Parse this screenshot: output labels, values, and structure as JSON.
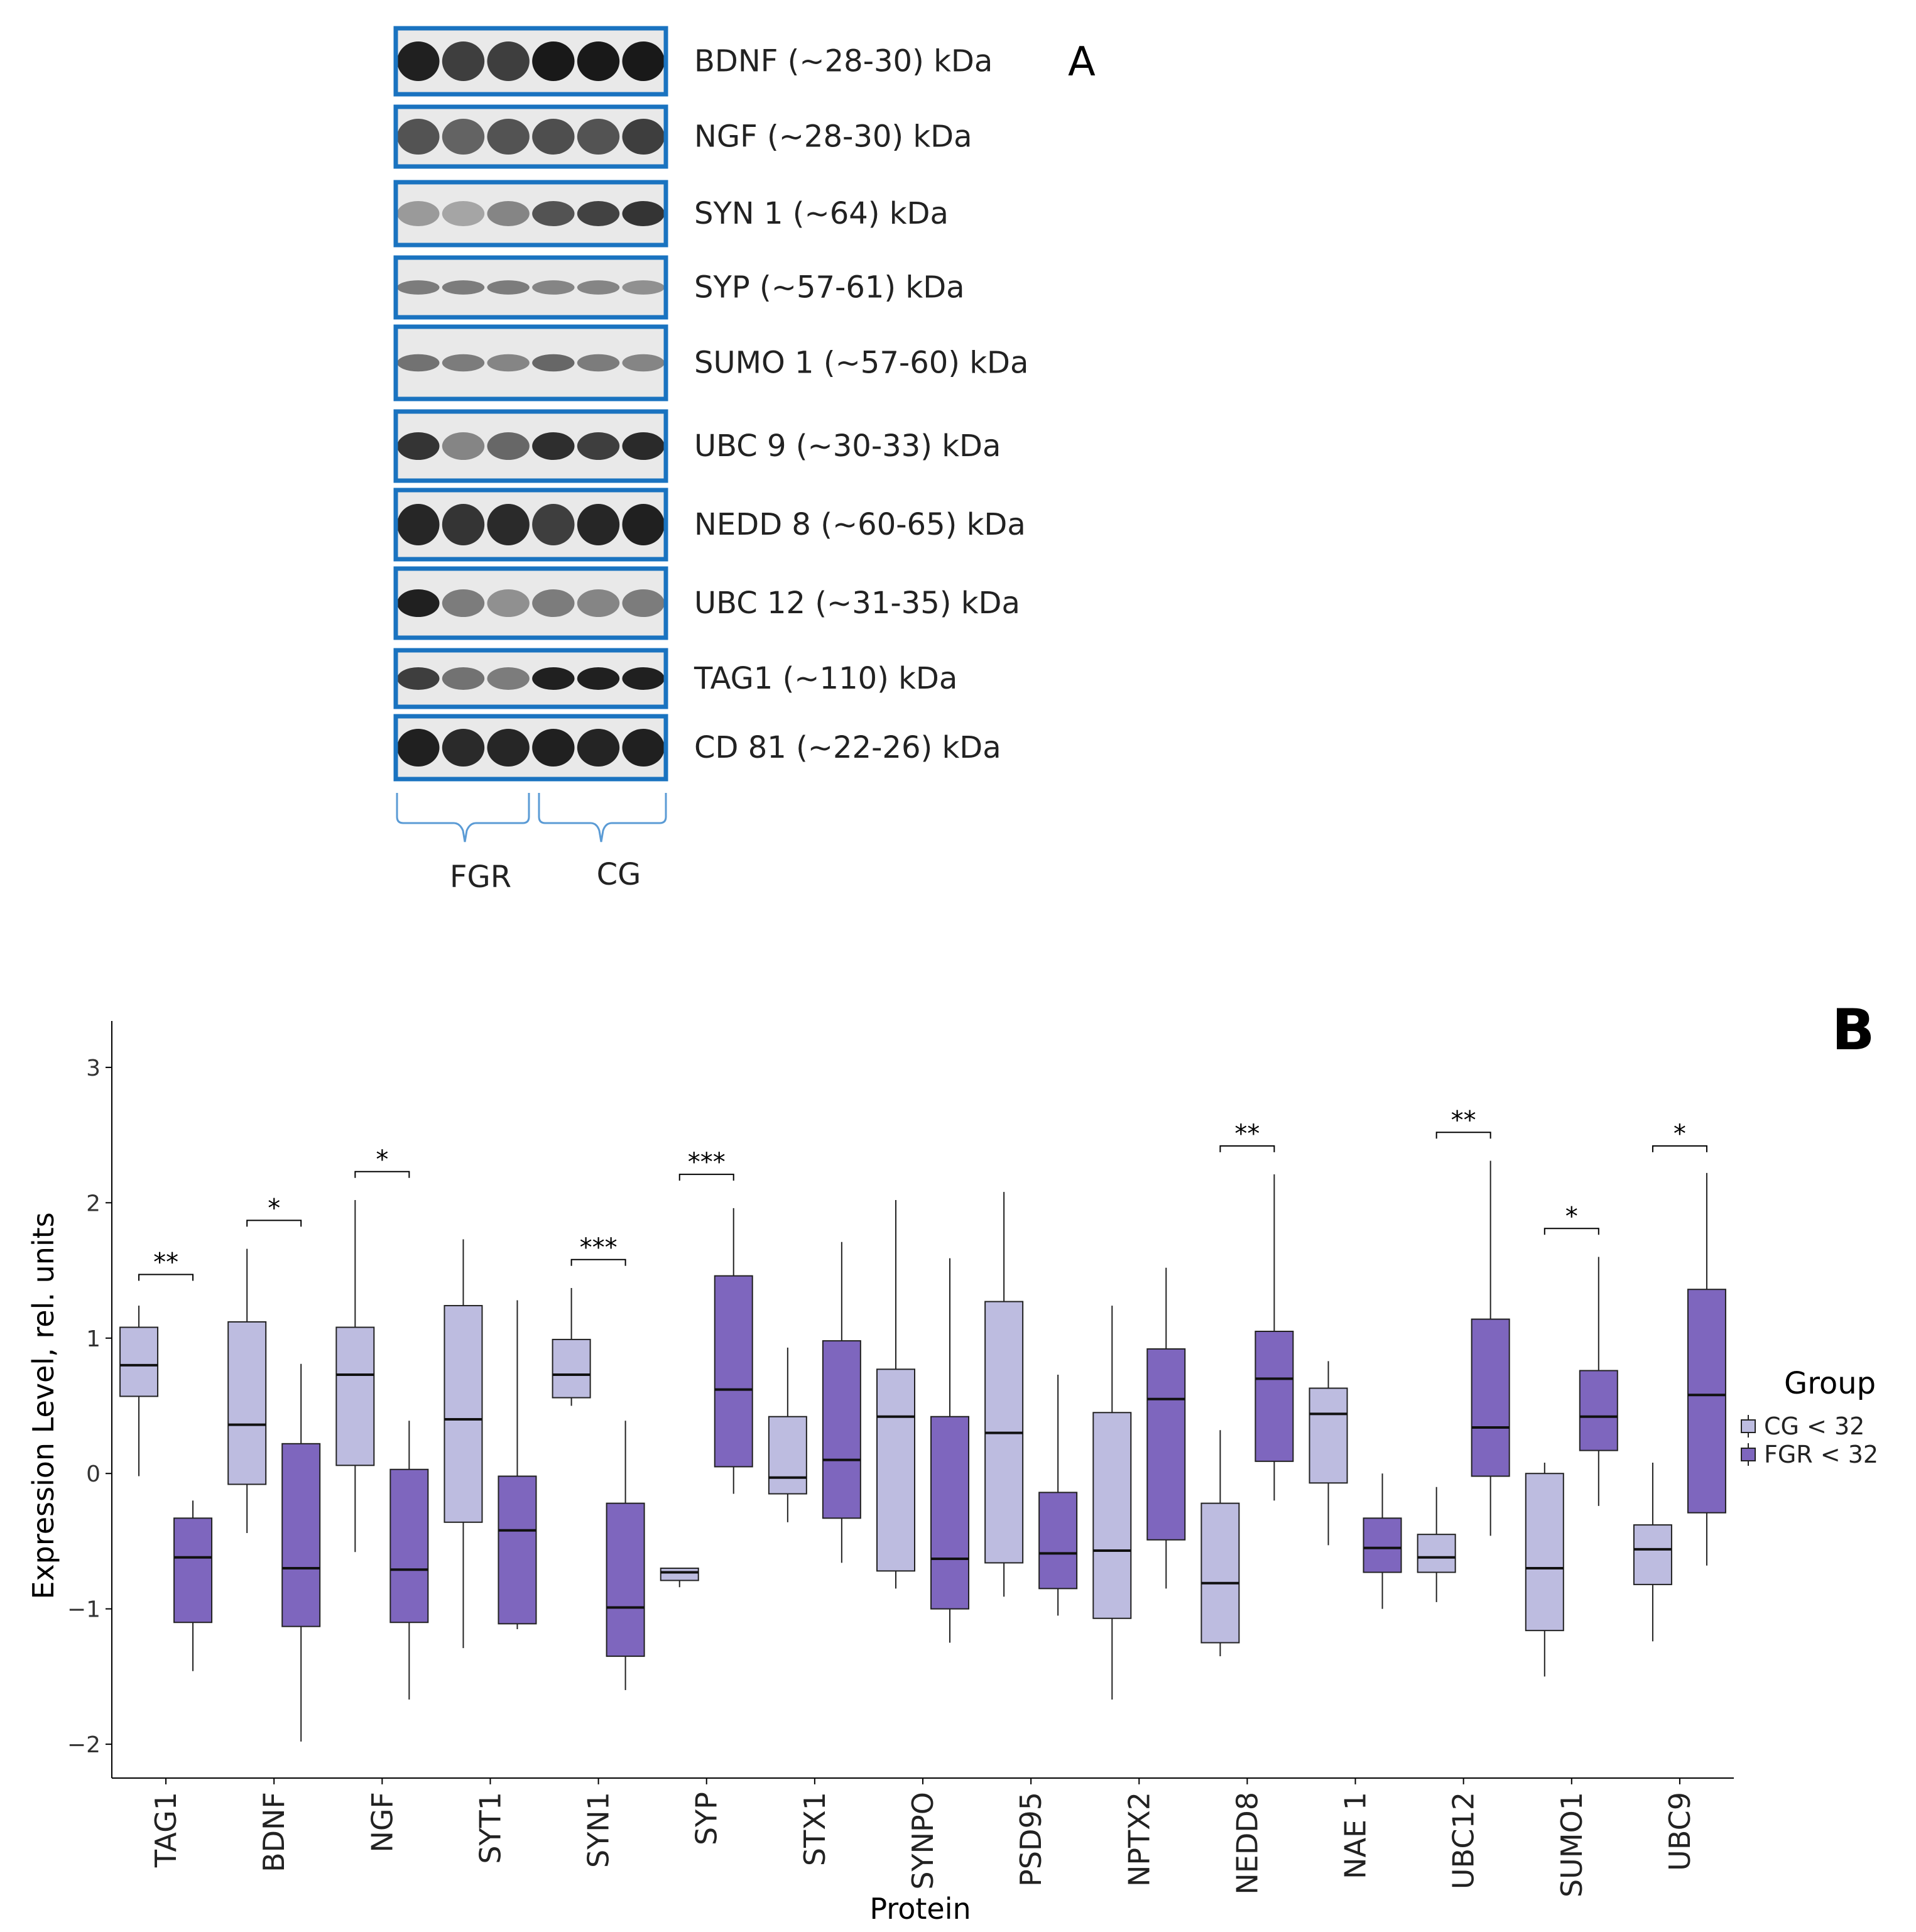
{
  "panel_a": {
    "letter": "A",
    "blots": [
      {
        "label": "BDNF (~28-30) kDa",
        "intensities": [
          0.95,
          0.8,
          0.8,
          0.98,
          0.98,
          0.98
        ],
        "style": "broad"
      },
      {
        "label": "NGF (~28-30) kDa",
        "intensities": [
          0.7,
          0.62,
          0.7,
          0.72,
          0.7,
          0.8
        ],
        "style": "broad"
      },
      {
        "label": "SYN 1 (~64) kDa",
        "intensities": [
          0.35,
          0.3,
          0.45,
          0.7,
          0.78,
          0.85
        ],
        "style": "band"
      },
      {
        "label": "SYP (~57-61) kDa",
        "intensities": [
          0.5,
          0.5,
          0.5,
          0.45,
          0.45,
          0.4
        ],
        "style": "thin"
      },
      {
        "label": "SUMO 1 (~57-60) kDa",
        "intensities": [
          0.55,
          0.5,
          0.45,
          0.6,
          0.5,
          0.45
        ],
        "style": "thin"
      },
      {
        "label": "UBC 9 (~30-33) kDa",
        "intensities": [
          0.85,
          0.45,
          0.6,
          0.88,
          0.8,
          0.9
        ],
        "style": "band"
      },
      {
        "label": "NEDD 8 (~60-65) kDa",
        "intensities": [
          0.92,
          0.85,
          0.9,
          0.8,
          0.92,
          0.95
        ],
        "style": "broad"
      },
      {
        "label": "UBC 12 (~31-35) kDa",
        "intensities": [
          0.95,
          0.5,
          0.4,
          0.5,
          0.45,
          0.5
        ],
        "style": "band"
      },
      {
        "label": "TAG1 (~110) kDa",
        "intensities": [
          0.8,
          0.55,
          0.5,
          0.95,
          0.95,
          0.95
        ],
        "style": "band"
      },
      {
        "label": "CD 81 (~22-26) kDa",
        "intensities": [
          0.95,
          0.9,
          0.92,
          0.95,
          0.93,
          0.95
        ],
        "style": "broad"
      }
    ],
    "group_fgr": "FGR",
    "group_cg": "CG"
  },
  "chart_data": {
    "type": "boxplot",
    "letter": "B",
    "title": "",
    "xlabel": "Protein",
    "ylabel": "Expression Level, rel. units",
    "ylim": [
      -2.25,
      3.25
    ],
    "yticks": [
      -2,
      -1,
      0,
      1,
      2,
      3
    ],
    "ytick_labels": [
      "−2",
      "−1",
      "0",
      "1",
      "2",
      "3"
    ],
    "legend_position": "right",
    "legend": {
      "title": "Group",
      "entries": [
        {
          "label": "CG < 32",
          "color": "#BDBCE0"
        },
        {
          "label": "FGR < 32",
          "color": "#7E66BE"
        }
      ]
    },
    "categories": [
      "TAG1",
      "BDNF",
      "NGF",
      "SYT1",
      "SYN1",
      "SYP",
      "STX1",
      "SYNPO",
      "PSD95",
      "NPTX2",
      "NEDD8",
      "NAE 1",
      "UBC12",
      "SUMO1",
      "UBC9"
    ],
    "series": [
      {
        "name": "CG < 32",
        "color": "#BDBCE0",
        "boxes": [
          {
            "min": -0.02,
            "q1": 0.57,
            "median": 0.8,
            "q3": 1.08,
            "max": 1.24
          },
          {
            "min": -0.44,
            "q1": -0.08,
            "median": 0.36,
            "q3": 1.12,
            "max": 1.66
          },
          {
            "min": -0.58,
            "q1": 0.06,
            "median": 0.73,
            "q3": 1.08,
            "max": 2.02
          },
          {
            "min": -1.29,
            "q1": -0.36,
            "median": 0.4,
            "q3": 1.24,
            "max": 1.73
          },
          {
            "min": 0.5,
            "q1": 0.56,
            "median": 0.73,
            "q3": 0.99,
            "max": 1.37
          },
          {
            "min": -0.84,
            "q1": -0.79,
            "median": -0.73,
            "q3": -0.7,
            "max": -0.7
          },
          {
            "min": -0.36,
            "q1": -0.15,
            "median": -0.03,
            "q3": 0.42,
            "max": 0.93
          },
          {
            "min": -0.85,
            "q1": -0.72,
            "median": 0.42,
            "q3": 0.77,
            "max": 2.02
          },
          {
            "min": -0.91,
            "q1": -0.66,
            "median": 0.3,
            "q3": 1.27,
            "max": 2.08
          },
          {
            "min": -1.67,
            "q1": -1.07,
            "median": -0.57,
            "q3": 0.45,
            "max": 1.24
          },
          {
            "min": -1.35,
            "q1": -1.25,
            "median": -0.81,
            "q3": -0.22,
            "max": 0.32
          },
          {
            "min": -0.53,
            "q1": -0.07,
            "median": 0.44,
            "q3": 0.63,
            "max": 0.83
          },
          {
            "min": -0.95,
            "q1": -0.73,
            "median": -0.62,
            "q3": -0.45,
            "max": -0.1
          },
          {
            "min": -1.5,
            "q1": -1.16,
            "median": -0.7,
            "q3": 0.0,
            "max": 0.08
          },
          {
            "min": -1.24,
            "q1": -0.82,
            "median": -0.56,
            "q3": -0.38,
            "max": 0.08
          }
        ]
      },
      {
        "name": "FGR < 32",
        "color": "#7E66BE",
        "boxes": [
          {
            "min": -1.46,
            "q1": -1.1,
            "median": -0.62,
            "q3": -0.33,
            "max": -0.2
          },
          {
            "min": -1.98,
            "q1": -1.13,
            "median": -0.7,
            "q3": 0.22,
            "max": 0.81
          },
          {
            "min": -1.67,
            "q1": -1.1,
            "median": -0.71,
            "q3": 0.03,
            "max": 0.39
          },
          {
            "min": -1.15,
            "q1": -1.11,
            "median": -0.42,
            "q3": -0.02,
            "max": 1.28
          },
          {
            "min": -1.6,
            "q1": -1.35,
            "median": -0.99,
            "q3": -0.22,
            "max": 0.39
          },
          {
            "min": -0.15,
            "q1": 0.05,
            "median": 0.62,
            "q3": 1.46,
            "max": 1.96
          },
          {
            "min": -0.66,
            "q1": -0.33,
            "median": 0.1,
            "q3": 0.98,
            "max": 1.71
          },
          {
            "min": -1.25,
            "q1": -1.0,
            "median": -0.63,
            "q3": 0.42,
            "max": 1.59
          },
          {
            "min": -1.05,
            "q1": -0.85,
            "median": -0.59,
            "q3": -0.14,
            "max": 0.73
          },
          {
            "min": -0.85,
            "q1": -0.49,
            "median": 0.55,
            "q3": 0.92,
            "max": 1.52
          },
          {
            "min": -0.2,
            "q1": 0.09,
            "median": 0.7,
            "q3": 1.05,
            "max": 2.21
          },
          {
            "min": -1.0,
            "q1": -0.73,
            "median": -0.55,
            "q3": -0.33,
            "max": 0.0
          },
          {
            "min": -0.46,
            "q1": -0.02,
            "median": 0.34,
            "q3": 1.14,
            "max": 2.31
          },
          {
            "min": -0.24,
            "q1": 0.17,
            "median": 0.42,
            "q3": 0.76,
            "max": 1.6
          },
          {
            "min": -0.68,
            "q1": -0.29,
            "median": 0.58,
            "q3": 1.36,
            "max": 2.22
          }
        ]
      }
    ],
    "significance": [
      {
        "category": "TAG1",
        "label": "**",
        "y": 1.47
      },
      {
        "category": "BDNF",
        "label": "*",
        "y": 1.87
      },
      {
        "category": "NGF",
        "label": "*",
        "y": 2.23
      },
      {
        "category": "SYN1",
        "label": "***",
        "y": 1.58
      },
      {
        "category": "SYP",
        "label": "***",
        "y": 2.21
      },
      {
        "category": "NEDD8",
        "label": "**",
        "y": 2.42
      },
      {
        "category": "UBC12",
        "label": "**",
        "y": 2.52
      },
      {
        "category": "SUMO1",
        "label": "*",
        "y": 1.81
      },
      {
        "category": "UBC9",
        "label": "*",
        "y": 2.42
      }
    ]
  }
}
